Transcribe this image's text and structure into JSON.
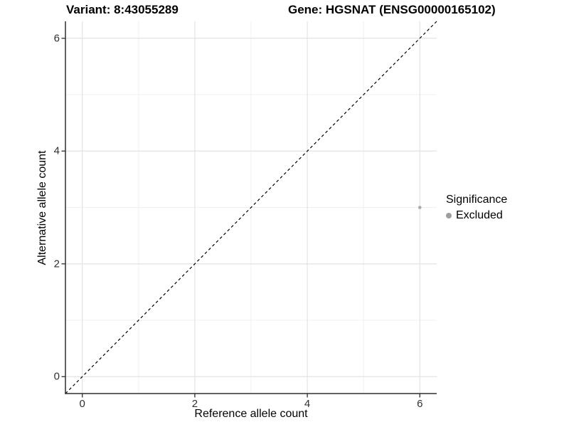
{
  "figure": {
    "title_variant": "Variant: 8:43055289",
    "title_gene": "Gene: HGSNAT (ENSG00000165102)"
  },
  "legend": {
    "title": "Significance",
    "items": [
      {
        "label": "Excluded",
        "color": "#9e9e9e"
      }
    ]
  },
  "chart_data": {
    "type": "scatter",
    "title": "Variant: 8:43055289 | Gene: HGSNAT (ENSG00000165102)",
    "xlabel": "Reference allele count",
    "ylabel": "Alternative allele count",
    "xlim": [
      -0.3,
      6.3
    ],
    "ylim": [
      -0.3,
      6.3
    ],
    "x_major_ticks": [
      0,
      2,
      4,
      6
    ],
    "y_major_ticks": [
      0,
      2,
      4,
      6
    ],
    "x_minor_ticks": [
      1,
      3,
      5
    ],
    "y_minor_ticks": [
      1,
      3,
      5
    ],
    "grid": "major and minor gridlines on white background",
    "legend_position": "right",
    "series": [
      {
        "name": "Excluded",
        "color": "#a8a8a8",
        "marker": "circle",
        "marker_radius_px": 2.3,
        "points": [
          {
            "x": 6,
            "y": 3
          }
        ]
      }
    ],
    "reference_line": {
      "type": "identity",
      "equation": "y = x",
      "style": "dashed",
      "color": "#000000"
    }
  },
  "style": {
    "grid_major_color": "#e3e3e3",
    "grid_minor_color": "#f0f0f0",
    "axis_color": "#2e2e2e",
    "tick_label_color": "#303030",
    "background": "#ffffff"
  }
}
